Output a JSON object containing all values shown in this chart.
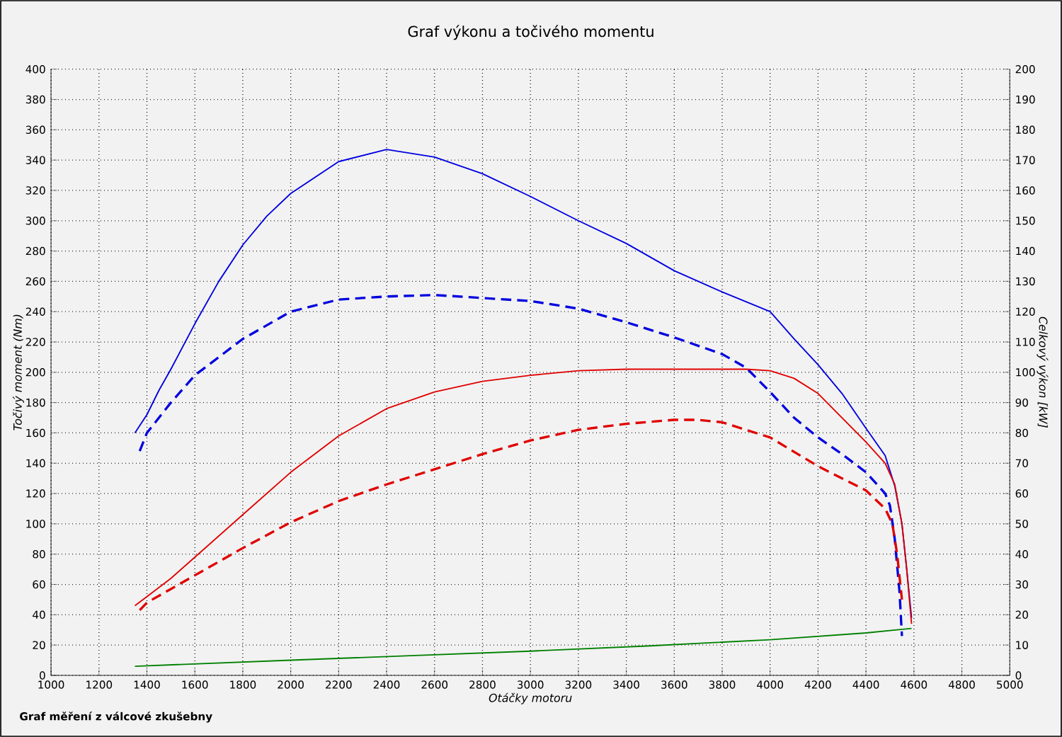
{
  "chart_data": {
    "type": "line",
    "title": "Graf výkonu a točivého momentu",
    "xlabel": "Otáčky motoru",
    "ylabel": "Točivý moment (Nm)",
    "y2label": "Celkový výkon [kW]",
    "annotations": [
      "Graf měření z válcové zkušebny"
    ],
    "xlim": [
      1000,
      5000
    ],
    "xticks": [
      1000,
      1200,
      1400,
      1600,
      1800,
      2000,
      2200,
      2400,
      2600,
      2800,
      3000,
      3200,
      3400,
      3600,
      3800,
      4000,
      4200,
      4400,
      4600,
      4800,
      5000
    ],
    "ylim": [
      0,
      400
    ],
    "yticks": [
      0,
      20,
      40,
      60,
      80,
      100,
      120,
      140,
      160,
      180,
      200,
      220,
      240,
      260,
      280,
      300,
      320,
      340,
      360,
      380,
      400
    ],
    "y2lim": [
      0,
      200
    ],
    "y2ticks": [
      0,
      10,
      20,
      30,
      40,
      50,
      60,
      70,
      80,
      90,
      100,
      110,
      120,
      130,
      140,
      150,
      160,
      170,
      180,
      190,
      200
    ],
    "grid": true,
    "series": [
      {
        "color": "#0000e0",
        "line_style": "solid",
        "x": [
          1350,
          1400,
          1450,
          1500,
          1600,
          1700,
          1800,
          1900,
          2000,
          2200,
          2400,
          2600,
          2800,
          3000,
          3200,
          3400,
          3600,
          3800,
          4000,
          4100,
          4200,
          4300,
          4400,
          4480,
          4520,
          4550,
          4570,
          4590
        ],
        "values": [
          160,
          172,
          188,
          202,
          232,
          260,
          284,
          303,
          318,
          339,
          347,
          342,
          331,
          316,
          300,
          285,
          267,
          253,
          240,
          222,
          205,
          186,
          163,
          145,
          125,
          100,
          70,
          38
        ]
      },
      {
        "color": "#0000e0",
        "line_style": "dashed",
        "x": [
          1370,
          1400,
          1500,
          1600,
          1800,
          2000,
          2200,
          2400,
          2600,
          2800,
          3000,
          3200,
          3400,
          3600,
          3800,
          3900,
          4000,
          4100,
          4200,
          4300,
          4400,
          4480,
          4500,
          4520,
          4540,
          4550
        ],
        "values": [
          148,
          160,
          180,
          198,
          222,
          240,
          248,
          250,
          251,
          249,
          247,
          242,
          233,
          223,
          212,
          203,
          187,
          170,
          157,
          146,
          134,
          120,
          112,
          90,
          55,
          26
        ]
      },
      {
        "color": "#e00000",
        "line_style": "solid",
        "axis": "y2",
        "x": [
          1350,
          1400,
          1500,
          1600,
          1800,
          2000,
          2200,
          2400,
          2600,
          2800,
          3000,
          3200,
          3400,
          3600,
          3800,
          3900,
          4000,
          4100,
          4200,
          4300,
          4400,
          4480,
          4520,
          4550,
          4570,
          4590
        ],
        "values": [
          23,
          26,
          32,
          39,
          53,
          67,
          79,
          88,
          93.5,
          97,
          99,
          100.5,
          101,
          101,
          101,
          101,
          100.5,
          98,
          93,
          85,
          77,
          70,
          63,
          50,
          35,
          17
        ]
      },
      {
        "color": "#e00000",
        "line_style": "dashed",
        "axis": "y2",
        "x": [
          1370,
          1400,
          1500,
          1600,
          1800,
          2000,
          2200,
          2400,
          2600,
          2800,
          3000,
          3200,
          3400,
          3600,
          3700,
          3800,
          4000,
          4200,
          4400,
          4480,
          4510,
          4530,
          4550
        ],
        "values": [
          21.5,
          24,
          28.5,
          33,
          42,
          50.5,
          57.5,
          63,
          68,
          73,
          77.5,
          81,
          83,
          84.3,
          84.3,
          83.5,
          78.5,
          69,
          61,
          55,
          50,
          40,
          25
        ]
      },
      {
        "color": "#008000",
        "line_style": "solid",
        "x": [
          1350,
          2000,
          2500,
          3000,
          3500,
          4000,
          4400,
          4590
        ],
        "values": [
          6,
          10,
          13,
          16,
          19.5,
          23.5,
          28,
          31
        ]
      }
    ]
  }
}
